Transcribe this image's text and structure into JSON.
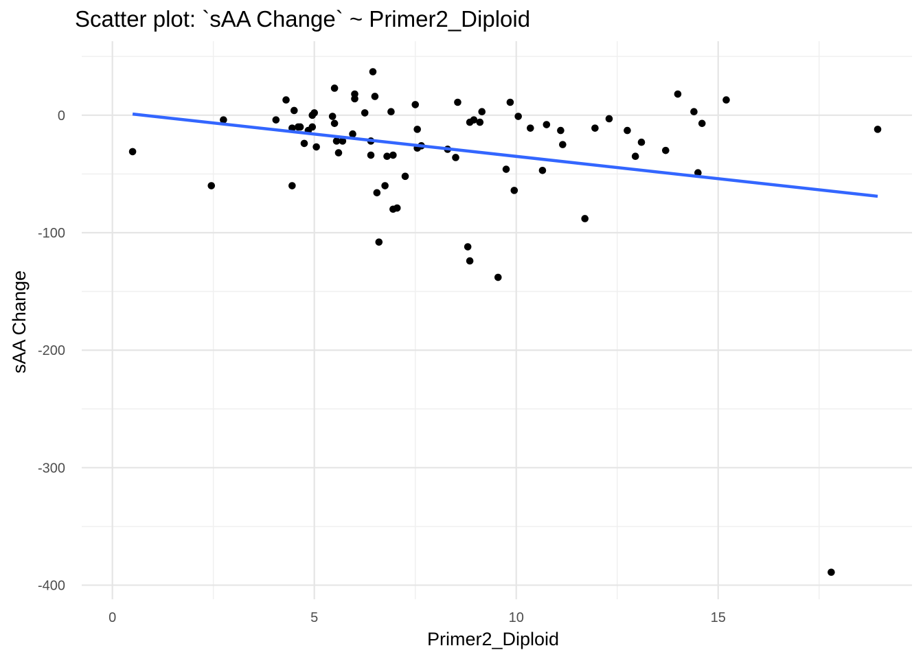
{
  "chart_data": {
    "type": "scatter",
    "title": "Scatter plot:  `sAA Change`  ~  Primer2_Diploid",
    "xlabel": "Primer2_Diploid",
    "ylabel": "sAA Change",
    "xlim": [
      -0.76,
      19.8
    ],
    "ylim": [
      -412,
      63
    ],
    "x_ticks": [
      0,
      5,
      10,
      15
    ],
    "x_tick_labels": [
      "0",
      "5",
      "10",
      "15"
    ],
    "x_minor_ticks": [
      2.5,
      7.5,
      12.5,
      17.5
    ],
    "y_ticks": [
      -400,
      -300,
      -200,
      -100,
      0
    ],
    "y_tick_labels": [
      "-400",
      "-300",
      "-200",
      "-100",
      "0"
    ],
    "y_minor_ticks": [
      -350,
      -250,
      -150,
      -50,
      50
    ],
    "grid": true,
    "legend": "none",
    "colors": {
      "points": "#000000",
      "fit_line": "#3366ff",
      "grid": "#e5e5e5"
    },
    "points": [
      [
        0.5,
        -31
      ],
      [
        2.45,
        -60
      ],
      [
        2.75,
        -4
      ],
      [
        4.05,
        -4
      ],
      [
        4.3,
        13
      ],
      [
        4.45,
        -11
      ],
      [
        4.45,
        -60
      ],
      [
        4.5,
        4
      ],
      [
        4.6,
        -10
      ],
      [
        4.65,
        -10
      ],
      [
        4.75,
        -24
      ],
      [
        4.85,
        -13
      ],
      [
        4.95,
        -10
      ],
      [
        4.95,
        0
      ],
      [
        5.0,
        2
      ],
      [
        5.05,
        -27
      ],
      [
        5.45,
        -1
      ],
      [
        5.5,
        -7
      ],
      [
        5.5,
        23
      ],
      [
        5.55,
        -22
      ],
      [
        5.6,
        -32
      ],
      [
        5.7,
        -22
      ],
      [
        5.95,
        -16
      ],
      [
        6.0,
        18
      ],
      [
        6.0,
        14
      ],
      [
        6.25,
        2
      ],
      [
        6.4,
        -34
      ],
      [
        6.4,
        -22
      ],
      [
        6.45,
        37
      ],
      [
        6.5,
        16
      ],
      [
        6.55,
        -66
      ],
      [
        6.6,
        -108
      ],
      [
        6.75,
        -60
      ],
      [
        6.8,
        -35
      ],
      [
        6.9,
        3
      ],
      [
        6.95,
        -80
      ],
      [
        6.95,
        -34
      ],
      [
        7.05,
        -79
      ],
      [
        7.25,
        -52
      ],
      [
        7.5,
        9
      ],
      [
        7.55,
        -12
      ],
      [
        7.55,
        -28
      ],
      [
        7.65,
        -26
      ],
      [
        8.3,
        -29
      ],
      [
        8.5,
        -36
      ],
      [
        8.55,
        11
      ],
      [
        8.8,
        -112
      ],
      [
        8.85,
        -124
      ],
      [
        8.85,
        -6
      ],
      [
        8.95,
        -4
      ],
      [
        9.1,
        -6
      ],
      [
        9.15,
        3
      ],
      [
        9.55,
        -138
      ],
      [
        9.75,
        -46
      ],
      [
        9.85,
        11
      ],
      [
        9.95,
        -64
      ],
      [
        10.05,
        -1
      ],
      [
        10.35,
        -11
      ],
      [
        10.65,
        -47
      ],
      [
        10.75,
        -8
      ],
      [
        11.1,
        -13
      ],
      [
        11.15,
        -25
      ],
      [
        11.7,
        -88
      ],
      [
        11.95,
        -11
      ],
      [
        12.3,
        -3
      ],
      [
        12.75,
        -13
      ],
      [
        12.95,
        -35
      ],
      [
        13.1,
        -23
      ],
      [
        13.7,
        -30
      ],
      [
        14.0,
        18
      ],
      [
        14.4,
        3
      ],
      [
        14.5,
        -49
      ],
      [
        14.6,
        -7
      ],
      [
        15.2,
        13
      ],
      [
        17.8,
        -389
      ],
      [
        18.95,
        -12
      ]
    ],
    "fit_line": {
      "x": [
        0.5,
        18.95
      ],
      "y": [
        1,
        -69
      ]
    }
  }
}
